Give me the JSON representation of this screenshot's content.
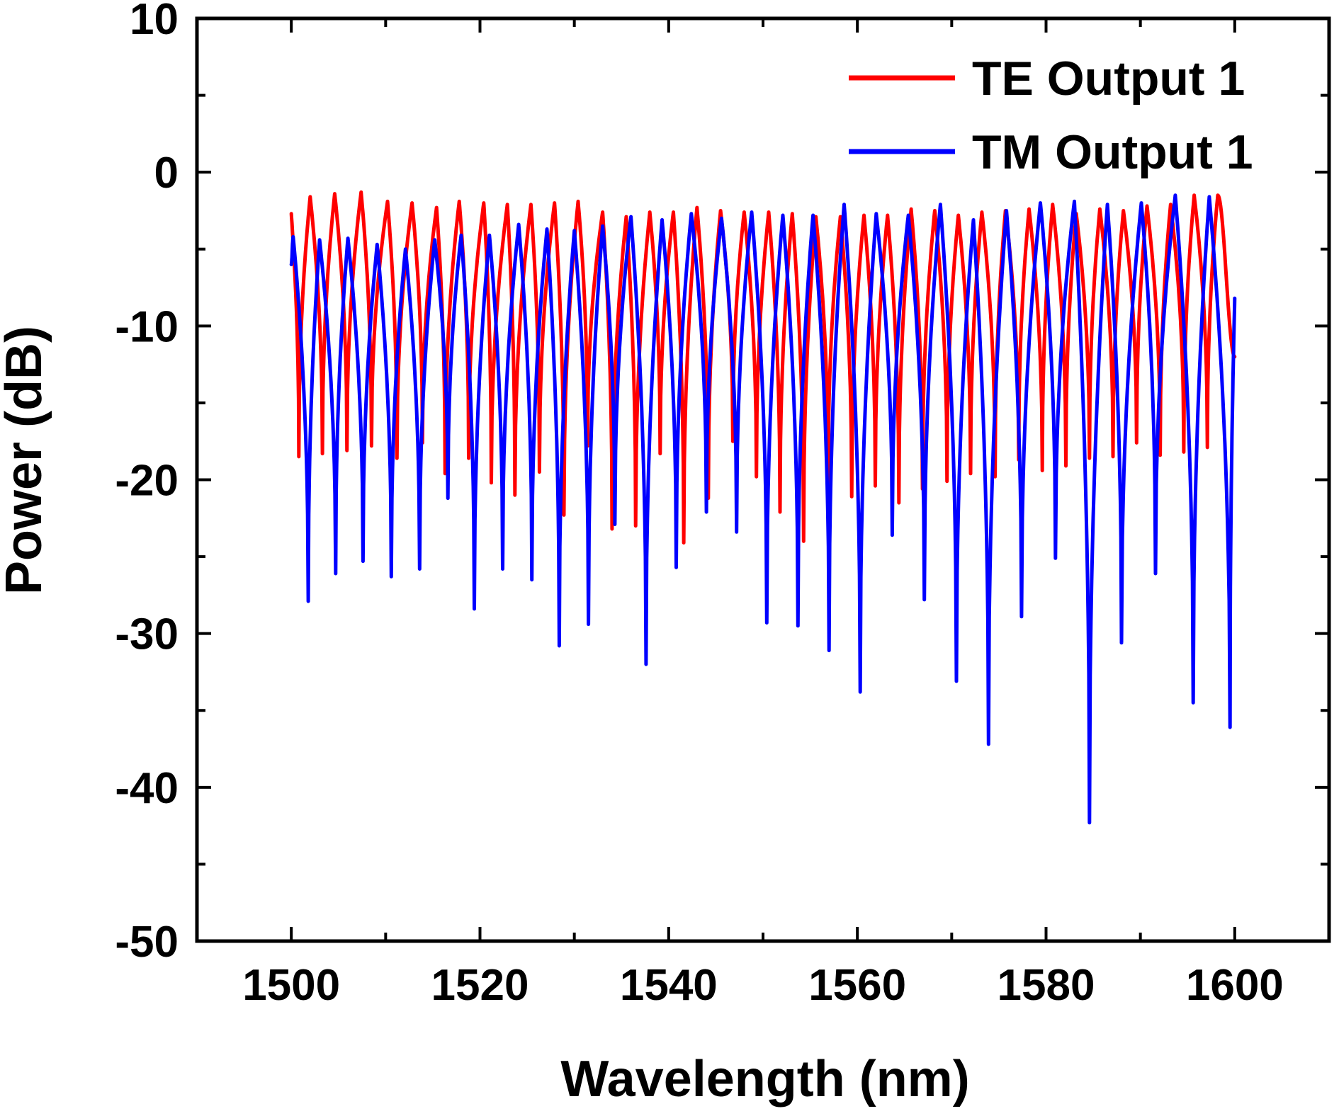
{
  "chart_data": {
    "type": "line",
    "title": "",
    "xlabel": "Wavelength (nm)",
    "ylabel": "Power (dB)",
    "xlim": [
      1490,
      1610
    ],
    "ylim": [
      -50,
      10
    ],
    "xticks": [
      1500,
      1520,
      1540,
      1560,
      1580,
      1600
    ],
    "xtick_labels": [
      "1500",
      "1520",
      "1540",
      "1560",
      "1580",
      "1600"
    ],
    "yticks": [
      -50,
      -40,
      -30,
      -20,
      -10,
      0,
      10
    ],
    "ytick_labels": [
      "-50",
      "-40",
      "-30",
      "-20",
      "-10",
      "0",
      "10"
    ],
    "grid": false,
    "legend_position": "top-right",
    "x_range": [
      1500,
      1600
    ],
    "series": [
      {
        "name": "TE Output 1",
        "color": "#ff0000",
        "peaks": [
          {
            "x": 1502.0,
            "y": -1.6
          },
          {
            "x": 1504.6,
            "y": -1.4
          },
          {
            "x": 1507.4,
            "y": -1.3
          },
          {
            "x": 1510.2,
            "y": -1.9
          },
          {
            "x": 1512.8,
            "y": -2.0
          },
          {
            "x": 1515.4,
            "y": -2.3
          },
          {
            "x": 1517.8,
            "y": -1.9
          },
          {
            "x": 1520.4,
            "y": -2.0
          },
          {
            "x": 1522.9,
            "y": -2.1
          },
          {
            "x": 1525.4,
            "y": -2.1
          },
          {
            "x": 1527.9,
            "y": -2.0
          },
          {
            "x": 1530.4,
            "y": -1.9
          },
          {
            "x": 1533.0,
            "y": -2.6
          },
          {
            "x": 1535.5,
            "y": -2.9
          },
          {
            "x": 1538.0,
            "y": -2.6
          },
          {
            "x": 1540.5,
            "y": -2.6
          },
          {
            "x": 1543.0,
            "y": -2.3
          },
          {
            "x": 1545.5,
            "y": -2.5
          },
          {
            "x": 1548.0,
            "y": -2.6
          },
          {
            "x": 1550.6,
            "y": -2.6
          },
          {
            "x": 1553.1,
            "y": -2.7
          },
          {
            "x": 1555.6,
            "y": -2.9
          },
          {
            "x": 1558.2,
            "y": -2.9
          },
          {
            "x": 1560.7,
            "y": -2.8
          },
          {
            "x": 1563.2,
            "y": -2.8
          },
          {
            "x": 1565.7,
            "y": -2.4
          },
          {
            "x": 1568.2,
            "y": -2.5
          },
          {
            "x": 1570.7,
            "y": -2.8
          },
          {
            "x": 1573.2,
            "y": -2.6
          },
          {
            "x": 1575.7,
            "y": -2.5
          },
          {
            "x": 1578.2,
            "y": -2.4
          },
          {
            "x": 1580.7,
            "y": -2.1
          },
          {
            "x": 1583.2,
            "y": -2.7
          },
          {
            "x": 1585.7,
            "y": -2.4
          },
          {
            "x": 1588.2,
            "y": -2.5
          },
          {
            "x": 1590.7,
            "y": -2.2
          },
          {
            "x": 1593.2,
            "y": -2.1
          },
          {
            "x": 1595.7,
            "y": -1.5
          },
          {
            "x": 1598.2,
            "y": -1.5
          }
        ],
        "dips": [
          {
            "x": 1500.8,
            "y": -18.5
          },
          {
            "x": 1503.3,
            "y": -18.3
          },
          {
            "x": 1505.9,
            "y": -18.1
          },
          {
            "x": 1508.5,
            "y": -17.8
          },
          {
            "x": 1511.2,
            "y": -18.6
          },
          {
            "x": 1513.9,
            "y": -17.6
          },
          {
            "x": 1516.3,
            "y": -19.6
          },
          {
            "x": 1518.8,
            "y": -18.6
          },
          {
            "x": 1521.2,
            "y": -20.2
          },
          {
            "x": 1523.7,
            "y": -21.0
          },
          {
            "x": 1526.3,
            "y": -19.5
          },
          {
            "x": 1528.9,
            "y": -22.3
          },
          {
            "x": 1531.4,
            "y": -17.8
          },
          {
            "x": 1534.0,
            "y": -23.2
          },
          {
            "x": 1536.5,
            "y": -23.0
          },
          {
            "x": 1539.1,
            "y": -18.3
          },
          {
            "x": 1541.6,
            "y": -24.1
          },
          {
            "x": 1544.2,
            "y": -21.2
          },
          {
            "x": 1546.8,
            "y": -17.5
          },
          {
            "x": 1549.3,
            "y": -19.8
          },
          {
            "x": 1551.8,
            "y": -22.1
          },
          {
            "x": 1554.3,
            "y": -24.0
          },
          {
            "x": 1556.9,
            "y": -20.3
          },
          {
            "x": 1559.4,
            "y": -21.1
          },
          {
            "x": 1561.9,
            "y": -20.4
          },
          {
            "x": 1564.4,
            "y": -21.5
          },
          {
            "x": 1566.9,
            "y": -20.6
          },
          {
            "x": 1569.5,
            "y": -20.1
          },
          {
            "x": 1572.0,
            "y": -19.6
          },
          {
            "x": 1574.6,
            "y": -19.8
          },
          {
            "x": 1577.1,
            "y": -18.7
          },
          {
            "x": 1579.6,
            "y": -19.4
          },
          {
            "x": 1582.1,
            "y": -19.1
          },
          {
            "x": 1584.6,
            "y": -18.6
          },
          {
            "x": 1587.1,
            "y": -18.5
          },
          {
            "x": 1589.6,
            "y": -17.6
          },
          {
            "x": 1592.1,
            "y": -18.4
          },
          {
            "x": 1594.6,
            "y": -18.2
          },
          {
            "x": 1597.1,
            "y": -17.9
          }
        ]
      },
      {
        "name": "TM Output 1",
        "color": "#0000ff",
        "peaks": [
          {
            "x": 1500.2,
            "y": -4.2
          },
          {
            "x": 1503.0,
            "y": -4.4
          },
          {
            "x": 1506.0,
            "y": -4.3
          },
          {
            "x": 1509.1,
            "y": -4.7
          },
          {
            "x": 1512.1,
            "y": -5.0
          },
          {
            "x": 1515.2,
            "y": -4.4
          },
          {
            "x": 1518.0,
            "y": -4.1
          },
          {
            "x": 1521.0,
            "y": -4.1
          },
          {
            "x": 1524.1,
            "y": -3.4
          },
          {
            "x": 1527.1,
            "y": -3.7
          },
          {
            "x": 1530.0,
            "y": -3.8
          },
          {
            "x": 1533.0,
            "y": -3.5
          },
          {
            "x": 1536.0,
            "y": -2.9
          },
          {
            "x": 1539.3,
            "y": -3.1
          },
          {
            "x": 1542.4,
            "y": -2.7
          },
          {
            "x": 1545.6,
            "y": -3.0
          },
          {
            "x": 1548.8,
            "y": -2.6
          },
          {
            "x": 1552.1,
            "y": -2.8
          },
          {
            "x": 1555.3,
            "y": -2.8
          },
          {
            "x": 1558.6,
            "y": -2.1
          },
          {
            "x": 1562.0,
            "y": -2.7
          },
          {
            "x": 1565.4,
            "y": -2.8
          },
          {
            "x": 1568.8,
            "y": -2.1
          },
          {
            "x": 1572.3,
            "y": -3.1
          },
          {
            "x": 1575.8,
            "y": -2.5
          },
          {
            "x": 1579.4,
            "y": -2.0
          },
          {
            "x": 1583.0,
            "y": -1.9
          },
          {
            "x": 1586.5,
            "y": -2.1
          },
          {
            "x": 1590.1,
            "y": -2.0
          },
          {
            "x": 1593.7,
            "y": -1.5
          },
          {
            "x": 1597.3,
            "y": -1.6
          }
        ],
        "dips": [
          {
            "x": 1501.8,
            "y": -27.9
          },
          {
            "x": 1504.7,
            "y": -26.1
          },
          {
            "x": 1507.6,
            "y": -25.3
          },
          {
            "x": 1510.6,
            "y": -26.3
          },
          {
            "x": 1513.6,
            "y": -25.8
          },
          {
            "x": 1516.6,
            "y": -21.2
          },
          {
            "x": 1519.4,
            "y": -28.4
          },
          {
            "x": 1522.4,
            "y": -25.8
          },
          {
            "x": 1525.5,
            "y": -26.5
          },
          {
            "x": 1528.4,
            "y": -30.8
          },
          {
            "x": 1531.5,
            "y": -29.4
          },
          {
            "x": 1534.3,
            "y": -22.9
          },
          {
            "x": 1537.6,
            "y": -32.0
          },
          {
            "x": 1540.8,
            "y": -25.7
          },
          {
            "x": 1544.0,
            "y": -22.1
          },
          {
            "x": 1547.2,
            "y": -23.4
          },
          {
            "x": 1550.4,
            "y": -29.3
          },
          {
            "x": 1553.7,
            "y": -29.5
          },
          {
            "x": 1557.0,
            "y": -31.1
          },
          {
            "x": 1560.3,
            "y": -33.8
          },
          {
            "x": 1563.7,
            "y": -23.6
          },
          {
            "x": 1567.1,
            "y": -27.8
          },
          {
            "x": 1570.5,
            "y": -33.1
          },
          {
            "x": 1573.9,
            "y": -37.2
          },
          {
            "x": 1577.4,
            "y": -28.9
          },
          {
            "x": 1581.0,
            "y": -25.1
          },
          {
            "x": 1584.6,
            "y": -42.3
          },
          {
            "x": 1588.0,
            "y": -30.6
          },
          {
            "x": 1591.6,
            "y": -26.1
          },
          {
            "x": 1595.6,
            "y": -34.5
          },
          {
            "x": 1599.5,
            "y": -36.1
          }
        ],
        "end_value": -8.2
      }
    ]
  }
}
